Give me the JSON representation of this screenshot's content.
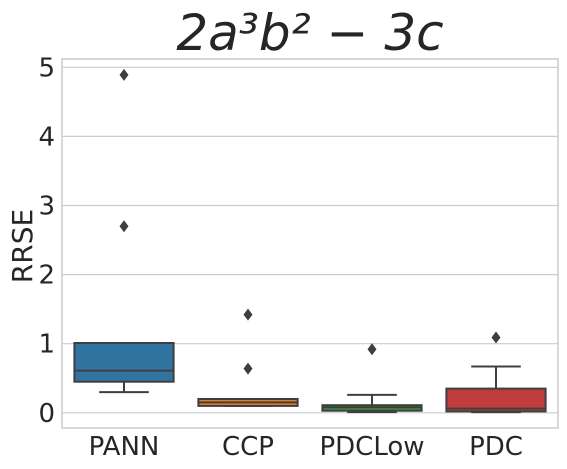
{
  "chart_data": {
    "type": "box",
    "title": "2a³b² − 3c",
    "ylabel": "RRSE",
    "xlabel": "",
    "ylim": [
      -0.22,
      5.12
    ],
    "yticks": [
      "0",
      "1",
      "2",
      "3",
      "4",
      "5"
    ],
    "grid": "horizontal",
    "categories": [
      "PANN",
      "CCP",
      "PDCLow",
      "PDC"
    ],
    "colors": [
      "#3274a1",
      "#e1812c",
      "#3a923a",
      "#c03d3e"
    ],
    "edge_color": "#3f3f3f",
    "boxes": [
      {
        "name": "PANN",
        "whisker_low": 0.3,
        "q1": 0.45,
        "median": 0.61,
        "q3": 1.01,
        "whisker_high": 1.01,
        "outliers": [
          2.7,
          4.89
        ]
      },
      {
        "name": "CCP",
        "whisker_low": 0.1,
        "q1": 0.1,
        "median": 0.15,
        "q3": 0.2,
        "whisker_high": 0.2,
        "outliers": [
          0.64,
          1.42
        ]
      },
      {
        "name": "PDCLow",
        "whisker_low": 0.01,
        "q1": 0.03,
        "median": 0.08,
        "q3": 0.11,
        "whisker_high": 0.26,
        "outliers": [
          0.92
        ]
      },
      {
        "name": "PDC",
        "whisker_low": 0.01,
        "q1": 0.02,
        "median": 0.06,
        "q3": 0.35,
        "whisker_high": 0.67,
        "outliers": [
          1.09
        ]
      }
    ]
  }
}
